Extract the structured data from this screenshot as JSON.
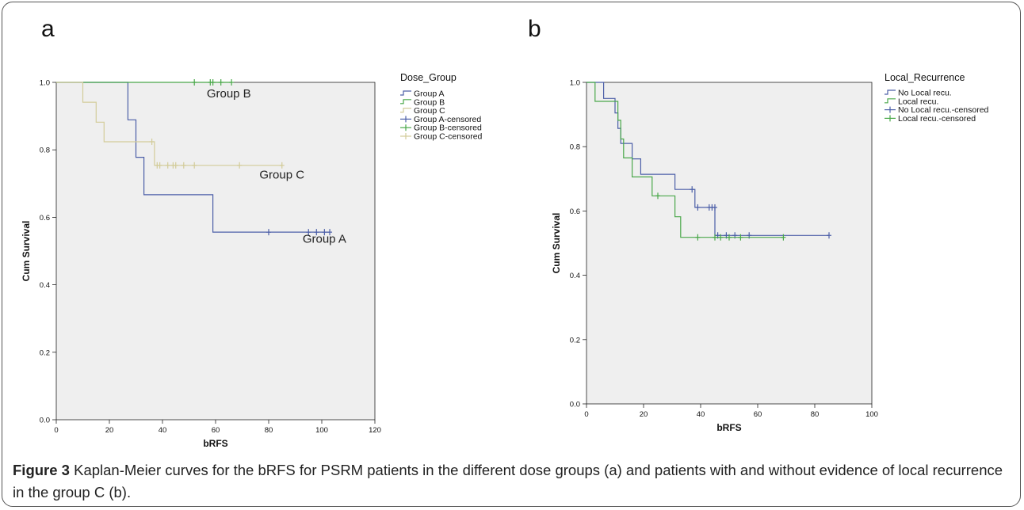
{
  "panel_a_letter": "a",
  "panel_b_letter": "b",
  "caption": {
    "label": "Figure 3",
    "text": " Kaplan-Meier curves for the bRFS for PSRM patients in the different dose groups (a) and patients with and without evidence of local recurrence in the group C (b)."
  },
  "colors": {
    "blue": "#4c5fa8",
    "green": "#4aa84a",
    "tan": "#d3cc9a",
    "plot_bg": "#efefef"
  },
  "chart_data": [
    {
      "type": "line",
      "panel": "a",
      "xlabel": "bRFS",
      "ylabel": "Cum Survival",
      "xlim": [
        0,
        120
      ],
      "ylim": [
        0.0,
        1.0
      ],
      "xticks": [
        0,
        20,
        40,
        60,
        80,
        100,
        120
      ],
      "yticks": [
        0.0,
        0.2,
        0.4,
        0.6,
        0.8,
        1.0
      ],
      "legend_title": "Dose_Group",
      "legend": [
        "Group A",
        "Group B",
        "Group C",
        "Group A-censored",
        "Group B-censored",
        "Group C-censored"
      ],
      "legend_placement": "right",
      "series": [
        {
          "name": "Group A",
          "color": "blue",
          "steps": [
            [
              0,
              1.0
            ],
            [
              27,
              0.889
            ],
            [
              30,
              0.778
            ],
            [
              33,
              0.667
            ],
            [
              59,
              0.556
            ]
          ],
          "end_x": 103,
          "censored": [
            [
              80,
              0.556
            ],
            [
              95,
              0.556
            ],
            [
              98,
              0.556
            ],
            [
              101,
              0.556
            ],
            [
              103,
              0.556
            ]
          ]
        },
        {
          "name": "Group B",
          "color": "green",
          "steps": [
            [
              0,
              1.0
            ]
          ],
          "end_x": 66,
          "censored": [
            [
              52,
              1.0
            ],
            [
              58,
              1.0
            ],
            [
              59,
              1.0
            ],
            [
              62,
              1.0
            ],
            [
              66,
              1.0
            ]
          ]
        },
        {
          "name": "Group C",
          "color": "tan",
          "steps": [
            [
              0,
              1.0
            ],
            [
              10,
              0.941
            ],
            [
              15,
              0.882
            ],
            [
              18,
              0.824
            ],
            [
              37,
              0.754
            ]
          ],
          "end_x": 85,
          "censored": [
            [
              36,
              0.824
            ],
            [
              38,
              0.754
            ],
            [
              39,
              0.754
            ],
            [
              42,
              0.754
            ],
            [
              44,
              0.754
            ],
            [
              45,
              0.754
            ],
            [
              48,
              0.754
            ],
            [
              52,
              0.754
            ],
            [
              69,
              0.754
            ],
            [
              85,
              0.754
            ]
          ]
        }
      ],
      "annotations": [
        {
          "text": "Group B",
          "x": 65,
          "y": 0.955
        },
        {
          "text": "Group C",
          "x": 85,
          "y": 0.715
        },
        {
          "text": "Group A",
          "x": 101,
          "y": 0.525
        }
      ]
    },
    {
      "type": "line",
      "panel": "b",
      "xlabel": "bRFS",
      "ylabel": "Cum Survival",
      "xlim": [
        0,
        100
      ],
      "ylim": [
        0.0,
        1.0
      ],
      "xticks": [
        0,
        20,
        40,
        60,
        80,
        100
      ],
      "yticks": [
        0.0,
        0.2,
        0.4,
        0.6,
        0.8,
        1.0
      ],
      "legend_title": "Local_Recurrence",
      "legend": [
        "No Local recu.",
        "Local recu.",
        "No Local recu.-censored",
        "Local recu.-censored"
      ],
      "legend_placement": "right",
      "series": [
        {
          "name": "No Local recu.",
          "color": "blue",
          "steps": [
            [
              0,
              1.0
            ],
            [
              6,
              0.95
            ],
            [
              10,
              0.905
            ],
            [
              11,
              0.857
            ],
            [
              12,
              0.81
            ],
            [
              16,
              0.762
            ],
            [
              19,
              0.714
            ],
            [
              31,
              0.667
            ],
            [
              38,
              0.611
            ],
            [
              45,
              0.524
            ]
          ],
          "end_x": 85,
          "censored": [
            [
              37,
              0.667
            ],
            [
              39,
              0.611
            ],
            [
              43,
              0.611
            ],
            [
              44,
              0.611
            ],
            [
              45,
              0.611
            ],
            [
              46,
              0.524
            ],
            [
              49,
              0.524
            ],
            [
              52,
              0.524
            ],
            [
              57,
              0.524
            ],
            [
              85,
              0.524
            ]
          ]
        },
        {
          "name": "Local recu.",
          "color": "green",
          "steps": [
            [
              0,
              1.0
            ],
            [
              3,
              0.941
            ],
            [
              11,
              0.882
            ],
            [
              12,
              0.824
            ],
            [
              13,
              0.765
            ],
            [
              16,
              0.706
            ],
            [
              23,
              0.647
            ],
            [
              31,
              0.582
            ],
            [
              33,
              0.518
            ]
          ],
          "end_x": 69,
          "censored": [
            [
              25,
              0.647
            ],
            [
              39,
              0.518
            ],
            [
              45,
              0.518
            ],
            [
              47,
              0.518
            ],
            [
              50,
              0.518
            ],
            [
              54,
              0.518
            ],
            [
              69,
              0.518
            ]
          ]
        }
      ]
    }
  ]
}
